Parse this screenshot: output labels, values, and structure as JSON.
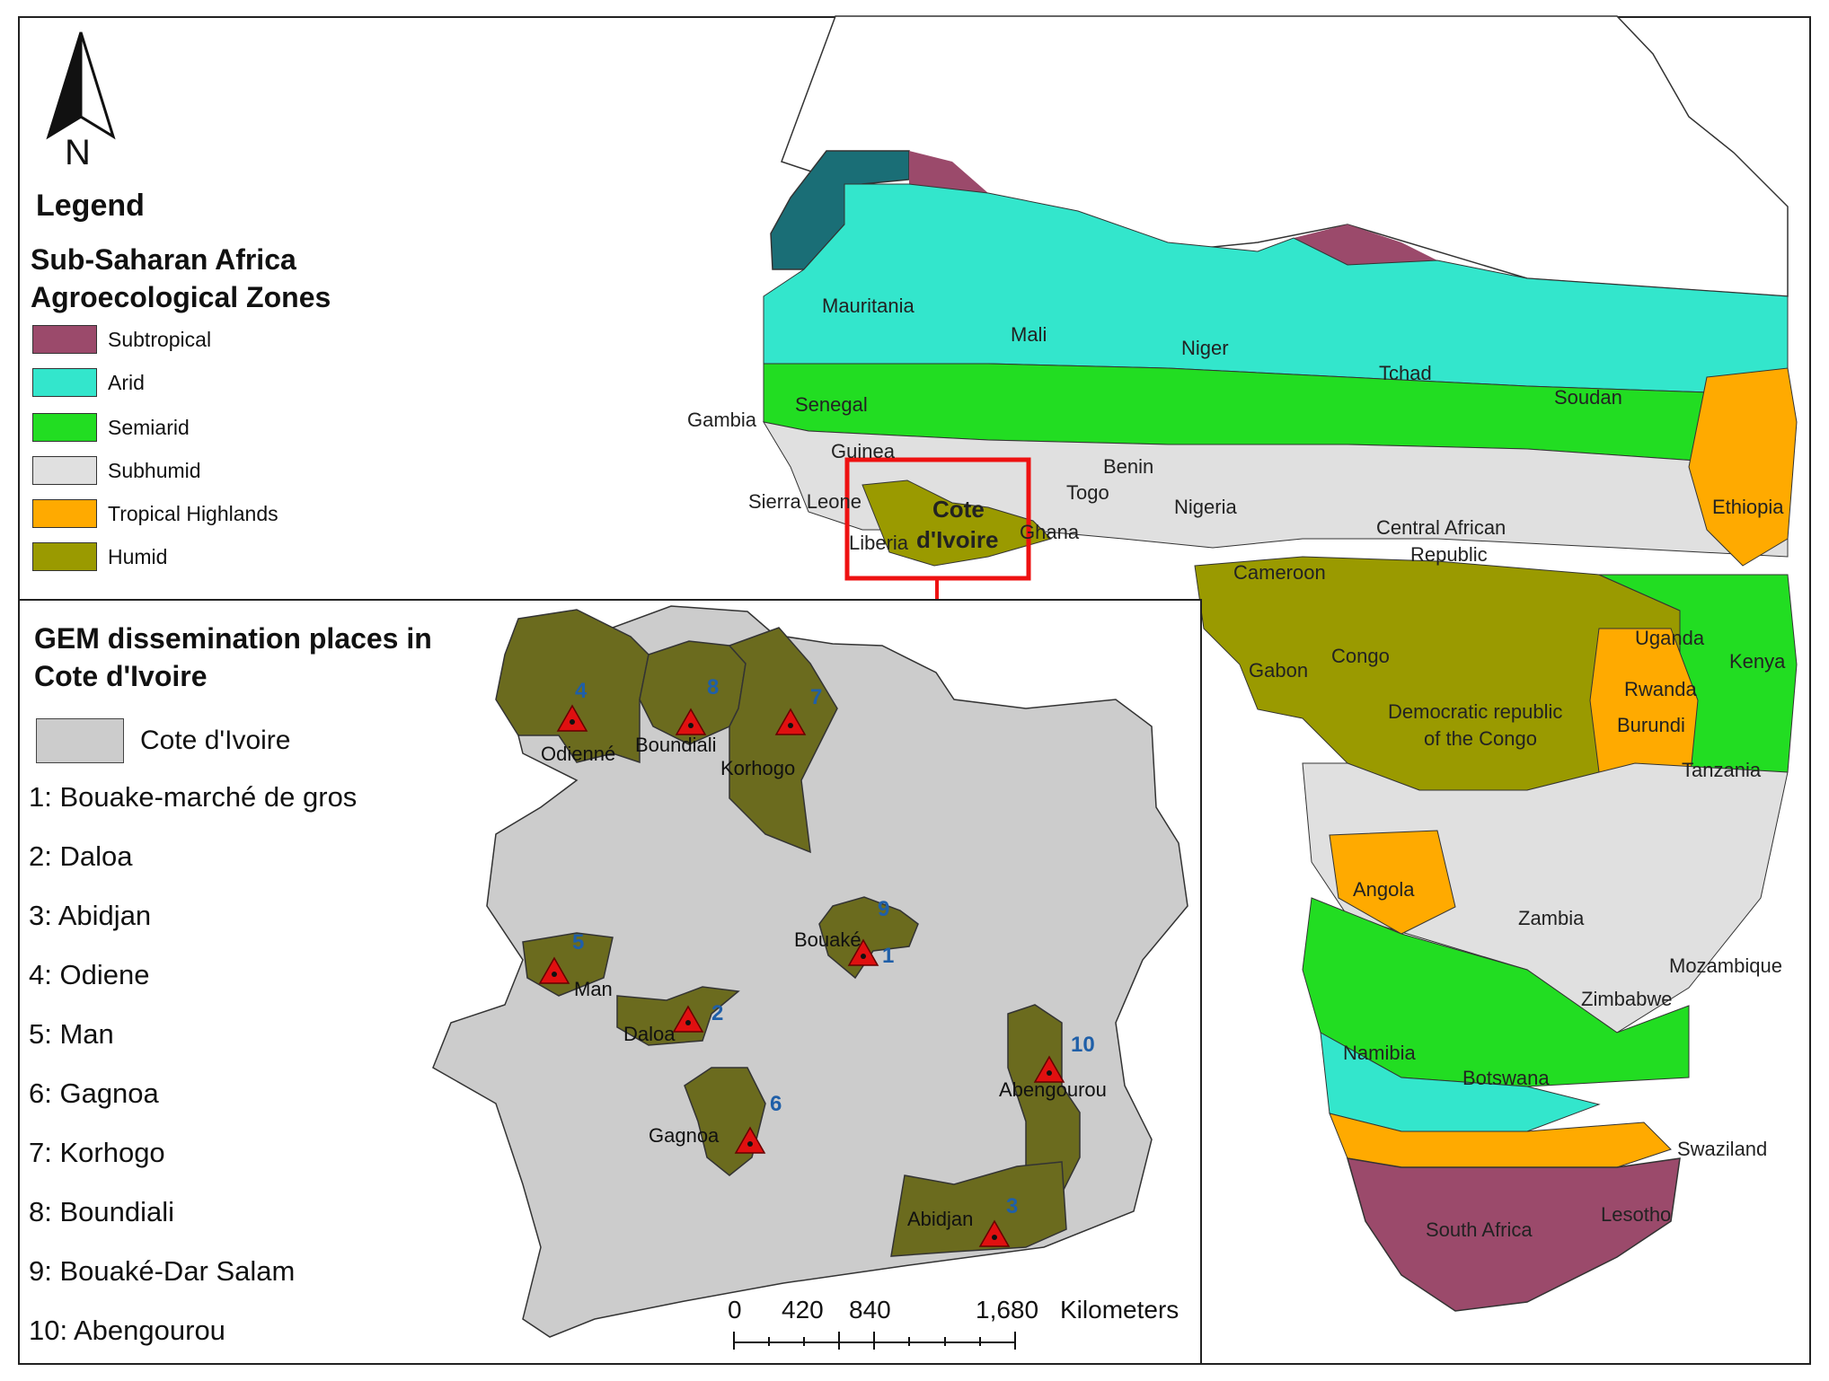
{
  "legend": {
    "title": "Legend",
    "subtitle": "Sub-Saharan Africa Agroecological Zones",
    "zones": [
      {
        "label": "Subtropical",
        "color": "#9b4a6b"
      },
      {
        "label": "Arid",
        "color": "#33e6cc"
      },
      {
        "label": "Semiarid",
        "color": "#22dd22"
      },
      {
        "label": "Subhumid",
        "color": "#e0e0e0"
      },
      {
        "label": "Tropical Highlands",
        "color": "#ffaa00"
      },
      {
        "label": "Humid",
        "color": "#9a9a00"
      }
    ]
  },
  "north_arrow": {
    "letter": "N"
  },
  "countries": {
    "mauritania": "Mauritania",
    "mali": "Mali",
    "niger": "Niger",
    "tchad": "Tchad",
    "soudan": "Soudan",
    "gambia": "Gambia",
    "senegal": "Senegal",
    "guinea": "Guinea",
    "sierra_leone": "Sierra Leone",
    "liberia": "Liberia",
    "cote": "Cote",
    "divoire": "d'Ivoire",
    "ghana": "Ghana",
    "togo": "Togo",
    "benin": "Benin",
    "nigeria": "Nigeria",
    "car1": "Central African",
    "car2": "Republic",
    "ethiopia": "Ethiopia",
    "cameroon": "Cameroon",
    "gabon": "Gabon",
    "congo": "Congo",
    "drc1": "Democratic republic",
    "drc2": "of the Congo",
    "uganda": "Uganda",
    "kenya": "Kenya",
    "rwanda": "Rwanda",
    "burundi": "Burundi",
    "tanzania": "Tanzania",
    "angola": "Angola",
    "zambia": "Zambia",
    "mozambique": "Mozambique",
    "zimbabwe": "Zimbabwe",
    "namibia": "Namibia",
    "botswana": "Botswana",
    "swaziland": "Swaziland",
    "lesotho": "Lesotho",
    "south_africa": "South Africa"
  },
  "inset": {
    "title": "GEM dissemination places in Cote d'Ivoire",
    "country_label": "Cote d'Ivoire",
    "country_color": "#cccccc",
    "highlight_color": "#6b6b1e",
    "places": [
      "1: Bouake-marché de gros",
      "2: Daloa",
      "3: Abidjan",
      "4: Odiene",
      "5: Man",
      "6: Gagnoa",
      "7: Korhogo",
      "8: Boundiali",
      "9: Bouaké-Dar Salam",
      "10: Abengourou"
    ],
    "map_labels": {
      "odienne": "Odienné",
      "boundiali": "Boundiali",
      "korhogo": "Korhogo",
      "bouake": "Bouaké",
      "man": "Man",
      "daloa": "Daloa",
      "gagnoa": "Gagnoa",
      "abengourou": "Abengourou",
      "abidjan": "Abidjan"
    },
    "map_numbers": {
      "n1": "1",
      "n2": "2",
      "n3": "3",
      "n4": "4",
      "n5": "5",
      "n6": "6",
      "n7": "7",
      "n8": "8",
      "n9": "9",
      "n10": "10"
    }
  },
  "scale_bar": {
    "t0": "0",
    "t1": "420",
    "t2": "840",
    "t3": "1,680",
    "unit": "Kilometers"
  }
}
